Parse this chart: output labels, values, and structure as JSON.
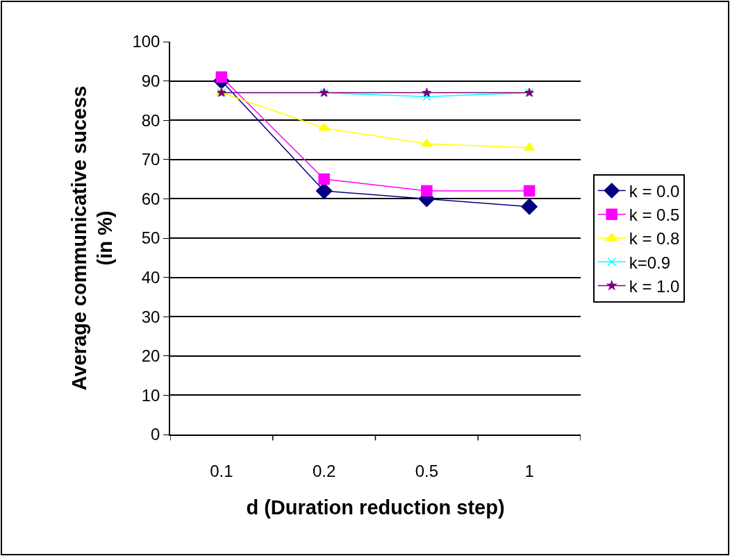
{
  "chart_data": {
    "type": "line",
    "xlabel": "d (Duration reduction step)",
    "ylabel": "Average communicative sucess\n(in %)",
    "categories": [
      "0.1",
      "0.2",
      "0.5",
      "1"
    ],
    "ylim": [
      0,
      100
    ],
    "yticks": [
      0,
      10,
      20,
      30,
      40,
      50,
      60,
      70,
      80,
      90,
      100
    ],
    "grid": "y",
    "legend": "right",
    "series": [
      {
        "name": "k = 0.0",
        "color": "#000080",
        "marker": "diamond",
        "values": [
          90,
          62,
          60,
          58
        ]
      },
      {
        "name": "k = 0.5",
        "color": "#ff00ff",
        "marker": "square",
        "values": [
          91,
          65,
          62,
          62
        ]
      },
      {
        "name": "k = 0.8",
        "color": "#ffff00",
        "marker": "triangle",
        "values": [
          87,
          78,
          74,
          73
        ]
      },
      {
        "name": "k=0.9",
        "color": "#00ffff",
        "marker": "cross",
        "values": [
          87,
          87,
          86,
          87
        ]
      },
      {
        "name": "k = 1.0",
        "color": "#800080",
        "marker": "star",
        "values": [
          87,
          87,
          87,
          87
        ]
      }
    ]
  }
}
